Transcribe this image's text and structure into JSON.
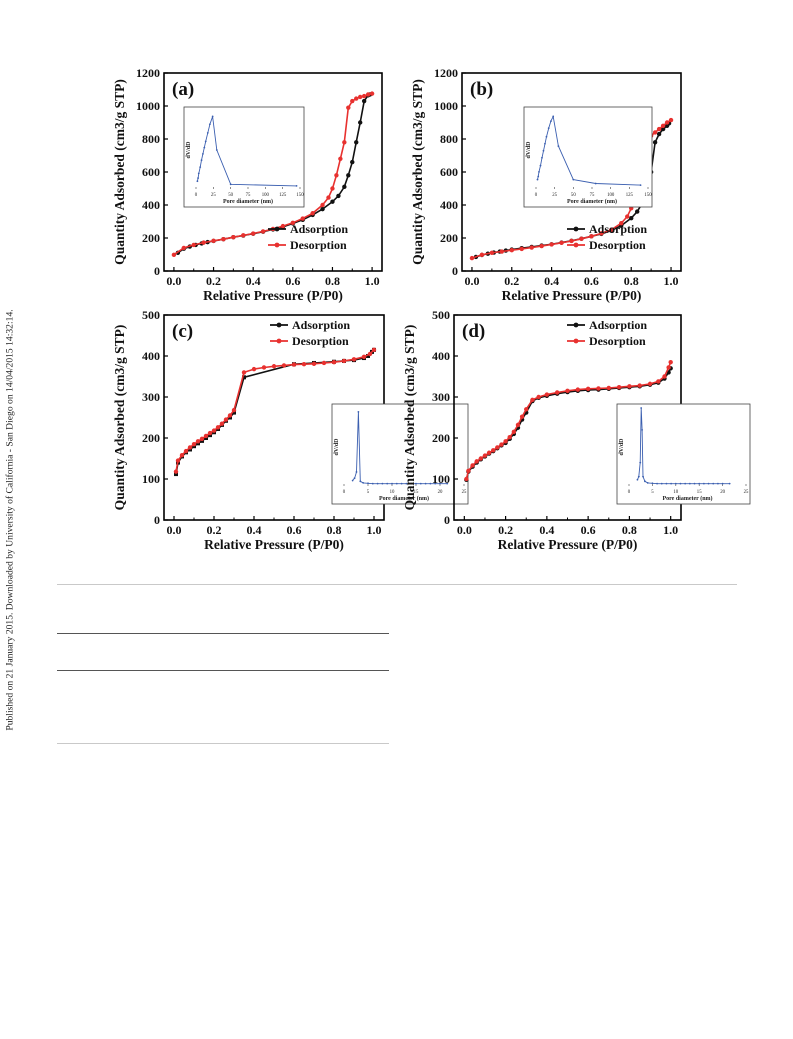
{
  "side_note": "Published on 21 January 2015. Downloaded by University of California - San Diego on 14/04/2015 14:32:14.",
  "colors": {
    "adsorption": "#111111",
    "desorption": "#e8312f",
    "inset": "#3b5fb0",
    "rule": "#c9c9c9"
  },
  "chart_data": [
    {
      "type": "line",
      "panel_label": "(a)",
      "xlabel": "Relative Pressure (P/P0)",
      "ylabel": "Quantity Adsorbed (cm3/g STP)",
      "xlim": [
        -0.05,
        1.05
      ],
      "ylim": [
        0,
        1200
      ],
      "xticks": [
        "0.0",
        "0.2",
        "0.4",
        "0.6",
        "0.8",
        "1.0"
      ],
      "yticks": [
        "0",
        "200",
        "400",
        "600",
        "800",
        "1000",
        "1200"
      ],
      "legend_position": "bottom-right",
      "series": [
        {
          "name": "Adsorption",
          "x": [
            0.02,
            0.05,
            0.08,
            0.11,
            0.14,
            0.17,
            0.2,
            0.25,
            0.3,
            0.35,
            0.4,
            0.45,
            0.5,
            0.55,
            0.6,
            0.65,
            0.7,
            0.75,
            0.8,
            0.83,
            0.86,
            0.88,
            0.9,
            0.92,
            0.94,
            0.96,
            0.98,
            0.99
          ],
          "y": [
            110,
            135,
            148,
            158,
            167,
            175,
            182,
            193,
            205,
            215,
            226,
            238,
            252,
            268,
            288,
            310,
            340,
            375,
            420,
            455,
            510,
            580,
            660,
            780,
            900,
            1030,
            1065,
            1070
          ]
        },
        {
          "name": "Desorption",
          "x": [
            0.0,
            0.05,
            0.1,
            0.15,
            0.2,
            0.25,
            0.3,
            0.35,
            0.4,
            0.45,
            0.5,
            0.55,
            0.6,
            0.65,
            0.7,
            0.75,
            0.78,
            0.8,
            0.82,
            0.84,
            0.86,
            0.88,
            0.9,
            0.92,
            0.94,
            0.96,
            0.98,
            1.0
          ],
          "y": [
            98,
            140,
            158,
            172,
            183,
            193,
            205,
            216,
            227,
            240,
            255,
            272,
            292,
            318,
            350,
            400,
            445,
            500,
            580,
            680,
            780,
            990,
            1030,
            1045,
            1055,
            1060,
            1070,
            1075
          ]
        }
      ],
      "inset": {
        "xlabel": "Pore diameter (nm)",
        "ylabel": "dV/dD",
        "xticks": [
          "0",
          "25",
          "50",
          "75",
          "100",
          "125",
          "150"
        ],
        "xlim": [
          0,
          150
        ],
        "x": [
          2,
          3,
          4,
          6,
          8,
          10,
          12,
          14,
          17,
          20,
          24,
          30,
          50,
          145
        ],
        "y": [
          0.1,
          0.14,
          0.2,
          0.28,
          0.37,
          0.45,
          0.53,
          0.61,
          0.72,
          0.83,
          0.93,
          0.5,
          0.06,
          0.04
        ]
      }
    },
    {
      "type": "line",
      "panel_label": "(b)",
      "xlabel": "Relative Pressure (P/P0)",
      "ylabel": "Quantity Adsorbed (cm3/g STP)",
      "xlim": [
        -0.05,
        1.05
      ],
      "ylim": [
        0,
        1200
      ],
      "xticks": [
        "0.0",
        "0.2",
        "0.4",
        "0.6",
        "0.8",
        "1.0"
      ],
      "yticks": [
        "0",
        "200",
        "400",
        "600",
        "800",
        "1000",
        "1200"
      ],
      "legend_position": "bottom-right",
      "series": [
        {
          "name": "Adsorption",
          "x": [
            0.02,
            0.05,
            0.08,
            0.11,
            0.14,
            0.17,
            0.2,
            0.25,
            0.3,
            0.35,
            0.4,
            0.45,
            0.5,
            0.55,
            0.6,
            0.65,
            0.7,
            0.75,
            0.8,
            0.83,
            0.86,
            0.88,
            0.9,
            0.92,
            0.94,
            0.96,
            0.98,
            0.99
          ],
          "y": [
            85,
            97,
            105,
            112,
            118,
            124,
            130,
            138,
            146,
            154,
            162,
            172,
            183,
            196,
            210,
            225,
            245,
            275,
            320,
            360,
            420,
            490,
            600,
            780,
            830,
            860,
            880,
            895
          ]
        },
        {
          "name": "Desorption",
          "x": [
            0.0,
            0.05,
            0.1,
            0.15,
            0.2,
            0.25,
            0.3,
            0.35,
            0.4,
            0.45,
            0.5,
            0.55,
            0.6,
            0.65,
            0.7,
            0.75,
            0.78,
            0.8,
            0.82,
            0.84,
            0.86,
            0.88,
            0.9,
            0.92,
            0.94,
            0.96,
            0.98,
            1.0
          ],
          "y": [
            78,
            98,
            110,
            118,
            126,
            134,
            142,
            151,
            161,
            171,
            182,
            195,
            210,
            228,
            250,
            290,
            330,
            380,
            460,
            560,
            730,
            790,
            820,
            840,
            860,
            880,
            900,
            915
          ]
        }
      ],
      "inset": {
        "xlabel": "Pore diameter (nm)",
        "ylabel": "dV/dD",
        "xticks": [
          "0",
          "25",
          "50",
          "75",
          "100",
          "125",
          "150"
        ],
        "xlim": [
          0,
          150
        ],
        "x": [
          2,
          3,
          4,
          6,
          8,
          10,
          12,
          14,
          17,
          20,
          23,
          30,
          50,
          80,
          140
        ],
        "y": [
          0.12,
          0.16,
          0.22,
          0.3,
          0.4,
          0.49,
          0.58,
          0.67,
          0.78,
          0.87,
          0.93,
          0.55,
          0.12,
          0.07,
          0.05
        ]
      }
    },
    {
      "type": "line",
      "panel_label": "(c)",
      "xlabel": "Relative Pressure (P/P0)",
      "ylabel": "Quantity Adsorbed (cm3/g STP)",
      "xlim": [
        -0.05,
        1.05
      ],
      "ylim": [
        0,
        500
      ],
      "xticks": [
        "0.0",
        "0.2",
        "0.4",
        "0.6",
        "0.8",
        "1.0"
      ],
      "yticks": [
        "0",
        "100",
        "200",
        "300",
        "400",
        "500"
      ],
      "legend_position": "top-right",
      "series": [
        {
          "name": "Adsorption",
          "x": [
            0.01,
            0.02,
            0.04,
            0.06,
            0.08,
            0.1,
            0.12,
            0.14,
            0.16,
            0.18,
            0.2,
            0.22,
            0.24,
            0.26,
            0.28,
            0.3,
            0.35,
            0.6,
            0.7,
            0.8,
            0.85,
            0.9,
            0.95,
            0.97,
            0.99,
            1.0
          ],
          "y": [
            112,
            140,
            155,
            165,
            172,
            180,
            187,
            193,
            200,
            207,
            214,
            222,
            232,
            242,
            250,
            262,
            348,
            380,
            383,
            386,
            388,
            390,
            395,
            400,
            410,
            415
          ]
        },
        {
          "name": "Desorption",
          "x": [
            0.01,
            0.02,
            0.04,
            0.06,
            0.08,
            0.1,
            0.12,
            0.14,
            0.16,
            0.18,
            0.2,
            0.22,
            0.24,
            0.26,
            0.28,
            0.3,
            0.35,
            0.4,
            0.45,
            0.5,
            0.55,
            0.6,
            0.65,
            0.7,
            0.75,
            0.8,
            0.85,
            0.9,
            0.95,
            0.98,
            1.0
          ],
          "y": [
            118,
            145,
            158,
            168,
            177,
            185,
            192,
            198,
            205,
            212,
            218,
            226,
            235,
            245,
            255,
            268,
            360,
            368,
            372,
            375,
            377,
            379,
            380,
            381,
            383,
            385,
            388,
            392,
            398,
            405,
            415
          ]
        }
      ],
      "inset": {
        "xlabel": "Pore diameter (nm)",
        "ylabel": "dV/dD",
        "xticks": [
          "0",
          "5",
          "10",
          "15",
          "20",
          "25"
        ],
        "xlim": [
          0,
          25
        ],
        "x": [
          1.8,
          2.2,
          2.6,
          3.0,
          3.4,
          4,
          5,
          6,
          7,
          8,
          9,
          10,
          11,
          12,
          13,
          14,
          15,
          16,
          17,
          18,
          19,
          20,
          21.5
        ],
        "y": [
          0.07,
          0.1,
          0.18,
          0.95,
          0.06,
          0.04,
          0.035,
          0.03,
          0.03,
          0.03,
          0.03,
          0.03,
          0.03,
          0.03,
          0.03,
          0.03,
          0.03,
          0.03,
          0.03,
          0.03,
          0.03,
          0.03,
          0.03
        ]
      }
    },
    {
      "type": "line",
      "panel_label": "(d)",
      "xlabel": "Relative Pressure (P/P0)",
      "ylabel": "Quantity Adsorbed (cm3/g STP)",
      "xlim": [
        -0.05,
        1.05
      ],
      "ylim": [
        0,
        500
      ],
      "xticks": [
        "0.0",
        "0.2",
        "0.4",
        "0.6",
        "0.8",
        "1.0"
      ],
      "yticks": [
        "0",
        "100",
        "200",
        "300",
        "400",
        "500"
      ],
      "legend_position": "top-right",
      "series": [
        {
          "name": "Adsorption",
          "x": [
            0.01,
            0.02,
            0.04,
            0.06,
            0.08,
            0.1,
            0.12,
            0.14,
            0.16,
            0.18,
            0.2,
            0.22,
            0.24,
            0.26,
            0.28,
            0.3,
            0.33,
            0.36,
            0.4,
            0.45,
            0.5,
            0.55,
            0.6,
            0.65,
            0.7,
            0.75,
            0.8,
            0.85,
            0.9,
            0.94,
            0.97,
            0.99,
            1.0
          ],
          "y": [
            98,
            118,
            130,
            140,
            148,
            155,
            162,
            168,
            175,
            182,
            188,
            198,
            210,
            225,
            245,
            262,
            290,
            298,
            303,
            308,
            312,
            315,
            317,
            318,
            320,
            322,
            324,
            326,
            330,
            335,
            345,
            360,
            370
          ]
        },
        {
          "name": "Desorption",
          "x": [
            0.01,
            0.02,
            0.04,
            0.06,
            0.08,
            0.1,
            0.12,
            0.14,
            0.16,
            0.18,
            0.2,
            0.22,
            0.24,
            0.26,
            0.28,
            0.3,
            0.33,
            0.36,
            0.4,
            0.45,
            0.5,
            0.55,
            0.6,
            0.65,
            0.7,
            0.75,
            0.8,
            0.85,
            0.9,
            0.94,
            0.97,
            0.99,
            1.0
          ],
          "y": [
            100,
            120,
            133,
            143,
            150,
            157,
            164,
            170,
            177,
            184,
            192,
            202,
            215,
            232,
            252,
            270,
            293,
            300,
            306,
            311,
            315,
            318,
            320,
            321,
            322,
            324,
            326,
            328,
            332,
            338,
            350,
            372,
            385
          ]
        }
      ],
      "inset": {
        "xlabel": "Pore diameter (nm)",
        "ylabel": "dV/dD",
        "xticks": [
          "0",
          "5",
          "10",
          "15",
          "20",
          "25"
        ],
        "xlim": [
          0,
          25
        ],
        "x": [
          1.8,
          2.1,
          2.4,
          2.6,
          2.8,
          3.0,
          3.4,
          4,
          5,
          6,
          7,
          8,
          9,
          10,
          11,
          12,
          13,
          14,
          15,
          16,
          17,
          18,
          19,
          20,
          21.5
        ],
        "y": [
          0.08,
          0.12,
          0.3,
          1.0,
          0.72,
          0.12,
          0.06,
          0.04,
          0.035,
          0.03,
          0.03,
          0.03,
          0.03,
          0.03,
          0.03,
          0.03,
          0.03,
          0.03,
          0.03,
          0.03,
          0.03,
          0.03,
          0.03,
          0.03,
          0.03
        ]
      }
    }
  ]
}
